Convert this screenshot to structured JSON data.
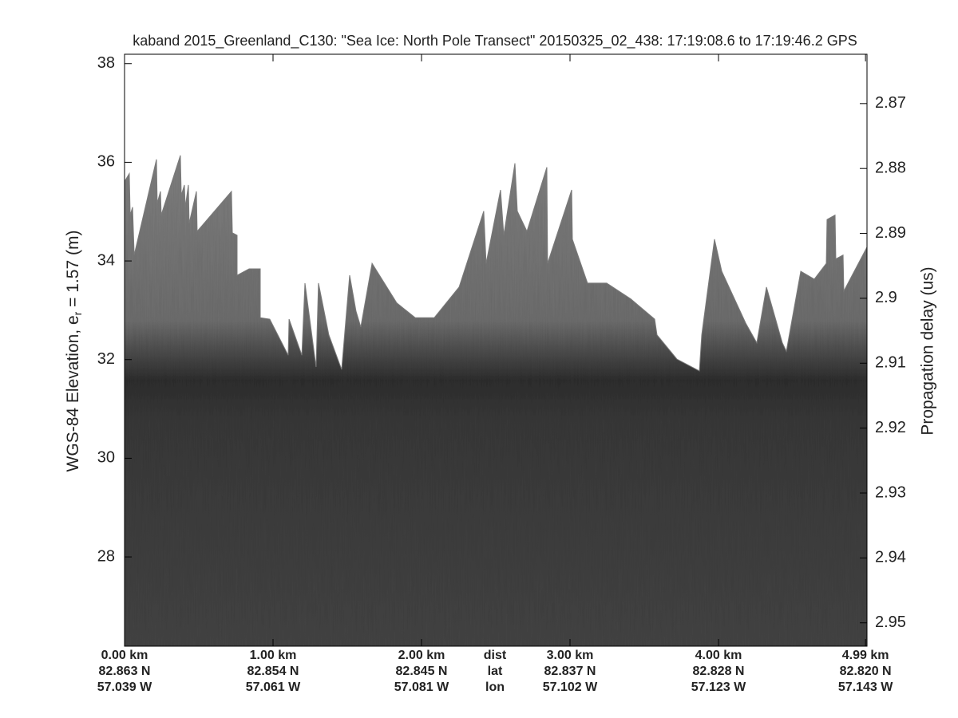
{
  "chart_data": {
    "type": "echogram",
    "title": "kaband 2015_Greenland_C130: \"Sea Ice: North Pole Transect\"  20150325_02_438: 17:19:08.6 to 17:19:46.2 GPS",
    "ylabel": {
      "text": "WGS-84 Elevation, e",
      "sub": "r",
      "after": " = 1.57 (m)"
    },
    "y2label": "Propagation delay (us)",
    "xlim": [
      0,
      5.0
    ],
    "ylim": [
      26.19,
      38.19
    ],
    "yticks": [
      28,
      30,
      32,
      34,
      36,
      38
    ],
    "y2lim": [
      2.9536,
      2.8624
    ],
    "y2ticks": [
      2.87,
      2.88,
      2.89,
      2.9,
      2.91,
      2.92,
      2.93,
      2.94,
      2.95
    ],
    "xticks": [
      {
        "value": 0,
        "label": "0.00 km"
      },
      {
        "value": 1,
        "label": "1.00 km"
      },
      {
        "value": 2,
        "label": "2.00 km"
      },
      {
        "value": 3,
        "label": "3.00 km"
      },
      {
        "value": 4,
        "label": "4.00 km"
      },
      {
        "value": 4.99,
        "label": "4.99 km"
      }
    ],
    "lat_labels": [
      "82.863 N",
      "82.854 N",
      "82.845 N",
      "82.837 N",
      "82.828 N",
      "82.820 N"
    ],
    "lon_labels": [
      "57.039 W",
      "57.061 W",
      "57.081 W",
      "57.102 W",
      "57.123 W",
      "57.143 W"
    ],
    "row_labels": [
      "dist",
      "lat",
      "lon"
    ],
    "x": [
      0,
      0.032,
      0.038,
      0.054,
      0.065,
      0.215,
      0.22,
      0.242,
      0.247,
      0.376,
      0.382,
      0.403,
      0.409,
      0.43,
      0.435,
      0.484,
      0.489,
      0.72,
      0.726,
      0.758,
      0.758,
      0.839,
      0.914,
      0.914,
      0.978,
      1.102,
      1.108,
      1.194,
      1.215,
      1.29,
      1.306,
      1.376,
      1.462,
      1.516,
      1.559,
      1.591,
      1.667,
      1.833,
      1.957,
      2.086,
      2.253,
      2.419,
      2.435,
      2.532,
      2.554,
      2.629,
      2.645,
      2.71,
      2.844,
      2.849,
      3.011,
      3.016,
      3.118,
      3.247,
      3.409,
      3.57,
      3.586,
      3.72,
      3.871,
      3.887,
      3.973,
      4.022,
      4.183,
      4.258,
      4.323,
      4.43,
      4.457,
      4.554,
      4.645,
      4.726,
      4.731,
      4.785,
      4.79,
      4.839,
      4.844,
      5.0
    ],
    "values": [
      35.61,
      35.77,
      34.93,
      35.09,
      34.12,
      36.06,
      35.17,
      35.41,
      34.93,
      36.14,
      35.33,
      35.54,
      35.09,
      35.54,
      34.76,
      35.41,
      34.6,
      35.41,
      34.57,
      34.52,
      33.71,
      33.84,
      33.84,
      32.85,
      32.82,
      32.09,
      32.82,
      32.09,
      33.55,
      31.85,
      33.55,
      32.5,
      31.8,
      33.71,
      32.98,
      32.66,
      33.95,
      33.15,
      32.85,
      32.85,
      33.47,
      35.01,
      33.95,
      35.44,
      34.52,
      35.98,
      35.01,
      34.6,
      35.9,
      33.95,
      35.44,
      34.44,
      33.55,
      33.55,
      33.23,
      32.82,
      32.5,
      32.01,
      31.77,
      32.5,
      34.44,
      33.79,
      32.74,
      32.34,
      33.47,
      32.34,
      32.17,
      33.79,
      33.63,
      33.95,
      34.84,
      34.93,
      34.04,
      34.12,
      33.39,
      34.28
    ],
    "color": "#7a7a7a"
  }
}
